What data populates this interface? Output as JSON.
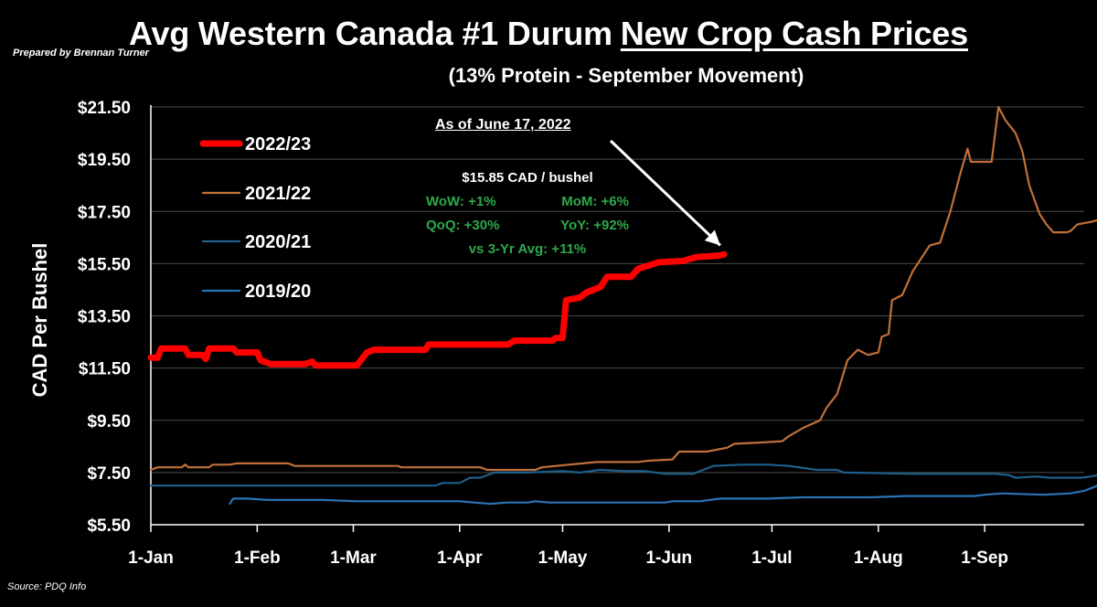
{
  "header": {
    "credit": "Prepared by Brennan Turner",
    "title_part1": "Avg Western Canada #1 Durum",
    "title_part2": "New Crop Cash Prices",
    "subtitle": "(13% Protein - September Movement)",
    "source": "Source: PDQ Info"
  },
  "annotation": {
    "as_of": "As of June 17, 2022",
    "price": "$15.85 CAD / bushel",
    "wow": "WoW: +1%",
    "mom": "MoM: +6%",
    "qoq": "QoQ: +30%",
    "yoy": "YoY: +92%",
    "avg3": "vs 3-Yr Avg: +11%",
    "green_color": "#2ea84a"
  },
  "chart_data": {
    "type": "line",
    "title": "Avg Western Canada #1 Durum New Crop Cash Prices",
    "subtitle": "(13% Protein - September Movement)",
    "ylabel": "CAD Per Bushel",
    "xlabel": "",
    "ylim": [
      5.5,
      21.5
    ],
    "y_ticks": [
      "$21.50",
      "$19.50",
      "$17.50",
      "$15.50",
      "$13.50",
      "$11.50",
      "$9.50",
      "$7.50",
      "$5.50"
    ],
    "y_tick_values": [
      21.5,
      19.5,
      17.5,
      15.5,
      13.5,
      11.5,
      9.5,
      7.5,
      5.5
    ],
    "x_ticks": [
      "1-Jan",
      "1-Feb",
      "1-Mar",
      "1-Apr",
      "1-May",
      "1-Jun",
      "1-Jul",
      "1-Aug",
      "1-Sep"
    ],
    "x_tick_days": [
      0,
      31,
      59,
      90,
      120,
      151,
      181,
      212,
      243
    ],
    "x_max_day": 272,
    "x_unit": "day of year",
    "grid": "horizontal",
    "legend_position": "top-left",
    "series": [
      {
        "name": "2022/23",
        "color": "#ff0000",
        "width": 7,
        "points": [
          [
            0,
            11.9
          ],
          [
            2,
            11.9
          ],
          [
            3,
            12.25
          ],
          [
            10,
            12.25
          ],
          [
            11,
            12.0
          ],
          [
            15,
            12.0
          ],
          [
            16,
            11.85
          ],
          [
            17,
            12.25
          ],
          [
            24,
            12.25
          ],
          [
            25,
            12.1
          ],
          [
            31,
            12.1
          ],
          [
            32,
            11.8
          ],
          [
            35,
            11.65
          ],
          [
            45,
            11.65
          ],
          [
            47,
            11.75
          ],
          [
            48,
            11.6
          ],
          [
            60,
            11.6
          ],
          [
            63,
            12.1
          ],
          [
            65,
            12.2
          ],
          [
            80,
            12.2
          ],
          [
            81,
            12.4
          ],
          [
            104,
            12.4
          ],
          [
            106,
            12.55
          ],
          [
            117,
            12.55
          ],
          [
            118,
            12.65
          ],
          [
            120,
            12.65
          ],
          [
            121,
            14.1
          ],
          [
            125,
            14.2
          ],
          [
            127,
            14.4
          ],
          [
            131,
            14.6
          ],
          [
            133,
            15.0
          ],
          [
            140,
            15.0
          ],
          [
            142,
            15.3
          ],
          [
            148,
            15.55
          ],
          [
            155,
            15.6
          ],
          [
            159,
            15.75
          ],
          [
            165,
            15.8
          ],
          [
            167,
            15.85
          ]
        ]
      },
      {
        "name": "2021/22",
        "color": "#c0703a",
        "width": 2.2,
        "points": [
          [
            0,
            7.6
          ],
          [
            2,
            7.7
          ],
          [
            9,
            7.7
          ],
          [
            10,
            7.8
          ],
          [
            11,
            7.7
          ],
          [
            17,
            7.7
          ],
          [
            18,
            7.8
          ],
          [
            23,
            7.8
          ],
          [
            25,
            7.85
          ],
          [
            40,
            7.85
          ],
          [
            42,
            7.75
          ],
          [
            60,
            7.75
          ],
          [
            72,
            7.75
          ],
          [
            73,
            7.7
          ],
          [
            96,
            7.7
          ],
          [
            98,
            7.6
          ],
          [
            112,
            7.6
          ],
          [
            114,
            7.7
          ],
          [
            118,
            7.75
          ],
          [
            130,
            7.9
          ],
          [
            142,
            7.9
          ],
          [
            145,
            7.95
          ],
          [
            152,
            8.0
          ],
          [
            154,
            8.3
          ],
          [
            162,
            8.3
          ],
          [
            168,
            8.45
          ],
          [
            170,
            8.6
          ],
          [
            178,
            8.65
          ],
          [
            184,
            8.7
          ],
          [
            186,
            8.9
          ],
          [
            190,
            9.2
          ],
          [
            195,
            9.5
          ],
          [
            197,
            10.0
          ],
          [
            200,
            10.5
          ],
          [
            203,
            11.8
          ],
          [
            206,
            12.2
          ],
          [
            209,
            12.0
          ],
          [
            212,
            12.1
          ],
          [
            213,
            12.7
          ],
          [
            215,
            12.8
          ],
          [
            216,
            14.1
          ],
          [
            219,
            14.3
          ],
          [
            220,
            14.6
          ],
          [
            222,
            15.2
          ],
          [
            224,
            15.6
          ],
          [
            227,
            16.2
          ],
          [
            230,
            16.3
          ],
          [
            233,
            17.5
          ],
          [
            236,
            19.0
          ],
          [
            238,
            19.9
          ],
          [
            239,
            19.4
          ],
          [
            245,
            19.4
          ],
          [
            247,
            21.5
          ],
          [
            249,
            21.0
          ],
          [
            252,
            20.5
          ],
          [
            254,
            19.8
          ],
          [
            256,
            18.5
          ],
          [
            259,
            17.4
          ],
          [
            261,
            17.0
          ],
          [
            263,
            16.7
          ],
          [
            267,
            16.7
          ],
          [
            268,
            16.75
          ],
          [
            270,
            17.0
          ],
          [
            274,
            17.1
          ],
          [
            277,
            17.2
          ],
          [
            280,
            18.6
          ]
        ]
      },
      {
        "name": "2020/21",
        "color": "#1f5f8b",
        "width": 2.2,
        "points": [
          [
            0,
            7.0
          ],
          [
            40,
            7.0
          ],
          [
            83,
            7.0
          ],
          [
            85,
            7.1
          ],
          [
            90,
            7.1
          ],
          [
            93,
            7.3
          ],
          [
            96,
            7.3
          ],
          [
            100,
            7.5
          ],
          [
            110,
            7.5
          ],
          [
            120,
            7.55
          ],
          [
            125,
            7.5
          ],
          [
            131,
            7.6
          ],
          [
            138,
            7.55
          ],
          [
            144,
            7.55
          ],
          [
            150,
            7.45
          ],
          [
            158,
            7.45
          ],
          [
            160,
            7.55
          ],
          [
            164,
            7.75
          ],
          [
            172,
            7.8
          ],
          [
            180,
            7.8
          ],
          [
            186,
            7.75
          ],
          [
            194,
            7.6
          ],
          [
            200,
            7.6
          ],
          [
            202,
            7.5
          ],
          [
            222,
            7.45
          ],
          [
            246,
            7.45
          ],
          [
            250,
            7.4
          ],
          [
            252,
            7.3
          ],
          [
            258,
            7.35
          ],
          [
            262,
            7.3
          ],
          [
            271,
            7.3
          ],
          [
            274,
            7.35
          ],
          [
            276,
            7.4
          ],
          [
            278,
            7.5
          ],
          [
            280,
            7.6
          ]
        ]
      },
      {
        "name": "2019/20",
        "color": "#2a73b5",
        "width": 2.2,
        "points": [
          [
            23,
            6.3
          ],
          [
            24,
            6.5
          ],
          [
            28,
            6.5
          ],
          [
            34,
            6.45
          ],
          [
            40,
            6.45
          ],
          [
            50,
            6.45
          ],
          [
            60,
            6.4
          ],
          [
            75,
            6.4
          ],
          [
            90,
            6.4
          ],
          [
            94,
            6.35
          ],
          [
            99,
            6.3
          ],
          [
            104,
            6.35
          ],
          [
            110,
            6.35
          ],
          [
            112,
            6.4
          ],
          [
            116,
            6.35
          ],
          [
            140,
            6.35
          ],
          [
            150,
            6.35
          ],
          [
            152,
            6.4
          ],
          [
            160,
            6.4
          ],
          [
            166,
            6.5
          ],
          [
            180,
            6.5
          ],
          [
            190,
            6.55
          ],
          [
            210,
            6.55
          ],
          [
            220,
            6.6
          ],
          [
            240,
            6.6
          ],
          [
            243,
            6.65
          ],
          [
            248,
            6.7
          ],
          [
            260,
            6.65
          ],
          [
            268,
            6.7
          ],
          [
            272,
            6.8
          ],
          [
            276,
            7.0
          ],
          [
            278,
            7.1
          ],
          [
            280,
            7.3
          ],
          [
            281,
            7.6
          ]
        ]
      }
    ]
  }
}
